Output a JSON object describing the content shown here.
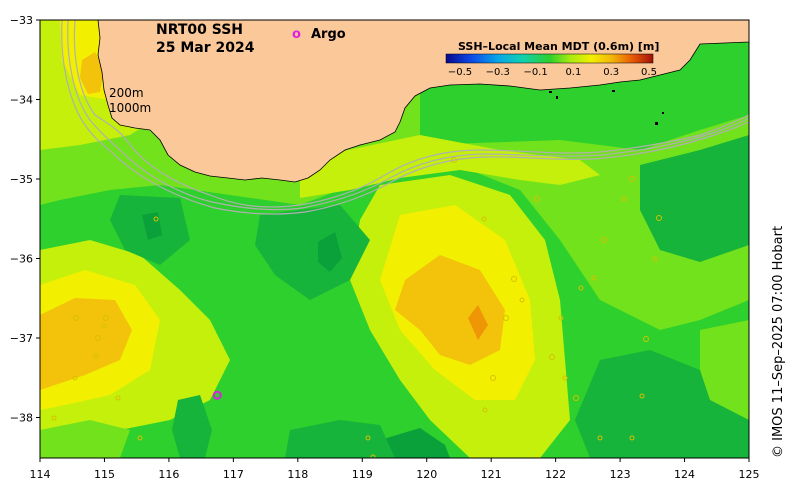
{
  "title": {
    "line1": "NRT00 SSH",
    "line2": "25 Mar 2024"
  },
  "legend": {
    "argo_symbol": "o",
    "argo_label": "Argo",
    "argo_color": "#e020e0"
  },
  "contours": {
    "label_200": "200m",
    "label_1000": "1000m"
  },
  "colorbar": {
    "title": "SSH–Local Mean MDT (0.6m) [m]",
    "ticks": [
      "−0.5",
      "−0.3",
      "−0.1",
      "0.1",
      "0.3",
      "0.5"
    ]
  },
  "axes": {
    "x_labels": [
      "114",
      "115",
      "116",
      "117",
      "118",
      "119",
      "120",
      "121",
      "122",
      "123",
      "124",
      "125"
    ],
    "y_labels": [
      "−33",
      "−34",
      "−35",
      "−36",
      "−37",
      "−38"
    ]
  },
  "credit": "© IMOS 11–Sep–2025 07:00 Hobart",
  "colors": {
    "land": "#fbc89a",
    "green_dark": "#16b43a",
    "green": "#2dd02c",
    "green_light": "#72e21c",
    "yellow_green": "#c4f00c",
    "yellow": "#f2f000",
    "orange_yellow": "#f2c30a",
    "orange": "#ee9606",
    "isobath": "#b0b0b0"
  },
  "argo_float": {
    "lon": 116.75,
    "lat": -37.72
  }
}
